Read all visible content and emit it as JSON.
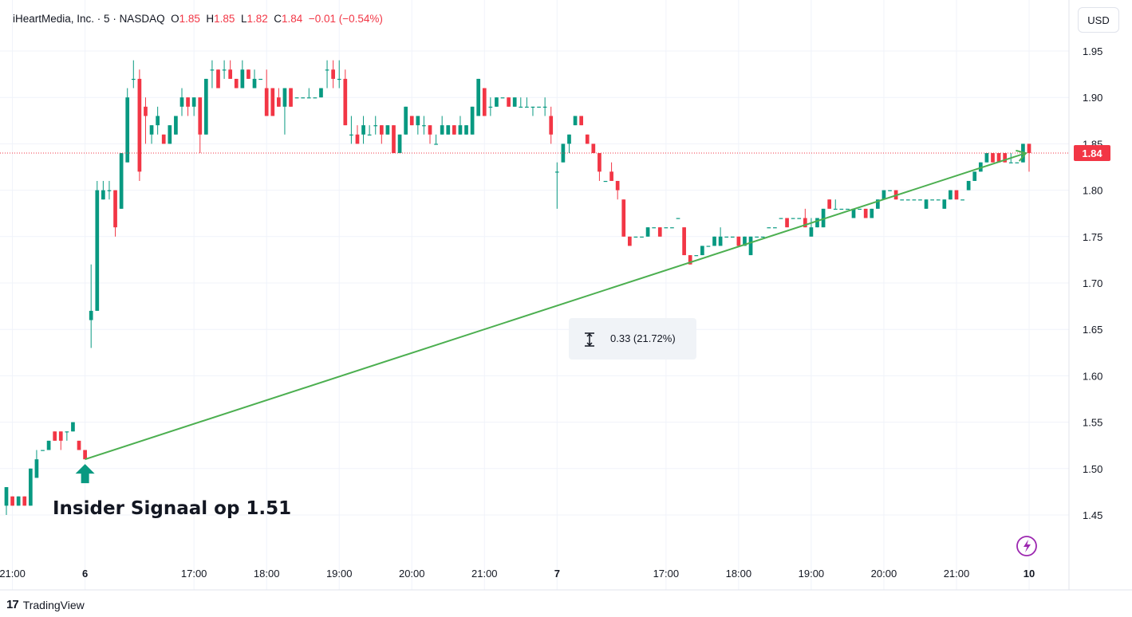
{
  "header": {
    "symbol_name": "iHeartMedia, Inc.",
    "sep1": " · ",
    "interval": "5",
    "sep2": " · ",
    "exchange": "NASDAQ",
    "o_label": "O",
    "o_value": "1.85",
    "h_label": "H",
    "h_value": "1.85",
    "l_label": "L",
    "l_value": "1.82",
    "c_label": "C",
    "c_value": "1.84",
    "change": "−0.01 (−0.54%)"
  },
  "currency_button": "USD",
  "footer": {
    "brand": "TradingView",
    "logo": "17"
  },
  "colors": {
    "up": "#089981",
    "down": "#f23645",
    "trendline": "#4caf50",
    "price_line": "#f23645",
    "grid": "#f0f3fa",
    "accent": "#9c27b0"
  },
  "chart_data": {
    "type": "candlestick",
    "ylim": [
      1.41,
      1.98
    ],
    "y_ticks": [
      1.45,
      1.5,
      1.55,
      1.6,
      1.65,
      1.7,
      1.75,
      1.8,
      1.85,
      1.9,
      1.95
    ],
    "y_tick_labels": [
      "1.45",
      "1.50",
      "1.55",
      "1.60",
      "1.65",
      "1.70",
      "1.75",
      "1.80",
      "1.85",
      "1.90",
      "1.95"
    ],
    "x_ticks": [
      {
        "label": "21:00",
        "i": 1,
        "bold": false
      },
      {
        "label": "6",
        "i": 13,
        "bold": true
      },
      {
        "label": "17:00",
        "i": 31,
        "bold": false
      },
      {
        "label": "18:00",
        "i": 43,
        "bold": false
      },
      {
        "label": "19:00",
        "i": 55,
        "bold": false
      },
      {
        "label": "20:00",
        "i": 67,
        "bold": false
      },
      {
        "label": "21:00",
        "i": 79,
        "bold": false
      },
      {
        "label": "7",
        "i": 91,
        "bold": true
      },
      {
        "label": "17:00",
        "i": 109,
        "bold": false
      },
      {
        "label": "18:00",
        "i": 121,
        "bold": false
      },
      {
        "label": "19:00",
        "i": 133,
        "bold": false
      },
      {
        "label": "20:00",
        "i": 145,
        "bold": false
      },
      {
        "label": "21:00",
        "i": 157,
        "bold": false
      },
      {
        "label": "10",
        "i": 169,
        "bold": true
      }
    ],
    "last_price": "1.84",
    "last_price_value": 1.84,
    "ohlc": [
      [
        1.46,
        1.48,
        1.45,
        1.48
      ],
      [
        1.47,
        1.47,
        1.46,
        1.46
      ],
      [
        1.46,
        1.47,
        1.46,
        1.47
      ],
      [
        1.47,
        1.47,
        1.46,
        1.46
      ],
      [
        1.46,
        1.5,
        1.46,
        1.5
      ],
      [
        1.49,
        1.52,
        1.49,
        1.51
      ],
      [
        1.52,
        1.52,
        1.52,
        1.52
      ],
      [
        1.52,
        1.53,
        1.52,
        1.53
      ],
      [
        1.54,
        1.54,
        1.53,
        1.53
      ],
      [
        1.54,
        1.54,
        1.52,
        1.53
      ],
      [
        1.54,
        1.54,
        1.53,
        1.54
      ],
      [
        1.54,
        1.55,
        1.54,
        1.55
      ],
      [
        1.53,
        1.53,
        1.52,
        1.52
      ],
      [
        1.52,
        1.52,
        1.51,
        1.51
      ],
      [
        1.66,
        1.72,
        1.63,
        1.67
      ],
      [
        1.67,
        1.81,
        1.67,
        1.8
      ],
      [
        1.79,
        1.81,
        1.79,
        1.8
      ],
      [
        1.8,
        1.81,
        1.79,
        1.8
      ],
      [
        1.8,
        1.8,
        1.75,
        1.76
      ],
      [
        1.78,
        1.84,
        1.78,
        1.84
      ],
      [
        1.83,
        1.91,
        1.83,
        1.9
      ],
      [
        1.92,
        1.94,
        1.91,
        1.92
      ],
      [
        1.92,
        1.93,
        1.81,
        1.82
      ],
      [
        1.89,
        1.9,
        1.85,
        1.88
      ],
      [
        1.86,
        1.87,
        1.85,
        1.87
      ],
      [
        1.87,
        1.89,
        1.86,
        1.88
      ],
      [
        1.86,
        1.86,
        1.85,
        1.85
      ],
      [
        1.85,
        1.87,
        1.85,
        1.87
      ],
      [
        1.86,
        1.88,
        1.86,
        1.88
      ],
      [
        1.89,
        1.91,
        1.88,
        1.9
      ],
      [
        1.9,
        1.9,
        1.88,
        1.89
      ],
      [
        1.89,
        1.9,
        1.88,
        1.9
      ],
      [
        1.9,
        1.9,
        1.84,
        1.86
      ],
      [
        1.86,
        1.92,
        1.86,
        1.92
      ],
      [
        1.93,
        1.94,
        1.91,
        1.93
      ],
      [
        1.93,
        1.93,
        1.91,
        1.91
      ],
      [
        1.93,
        1.94,
        1.92,
        1.93
      ],
      [
        1.93,
        1.94,
        1.92,
        1.92
      ],
      [
        1.92,
        1.92,
        1.91,
        1.91
      ],
      [
        1.91,
        1.94,
        1.91,
        1.93
      ],
      [
        1.93,
        1.93,
        1.92,
        1.92
      ],
      [
        1.91,
        1.93,
        1.91,
        1.92
      ],
      [
        1.92,
        1.92,
        1.92,
        1.92
      ],
      [
        1.91,
        1.93,
        1.88,
        1.88
      ],
      [
        1.91,
        1.91,
        1.88,
        1.88
      ],
      [
        1.9,
        1.91,
        1.89,
        1.89
      ],
      [
        1.89,
        1.91,
        1.86,
        1.91
      ],
      [
        1.91,
        1.91,
        1.89,
        1.89
      ],
      [
        1.9,
        1.9,
        1.9,
        1.9
      ],
      [
        1.9,
        1.9,
        1.9,
        1.9
      ],
      [
        1.9,
        1.91,
        1.9,
        1.9
      ],
      [
        1.9,
        1.9,
        1.9,
        1.9
      ],
      [
        1.9,
        1.91,
        1.9,
        1.91
      ],
      [
        1.93,
        1.94,
        1.91,
        1.93
      ],
      [
        1.93,
        1.94,
        1.91,
        1.92
      ],
      [
        1.92,
        1.94,
        1.91,
        1.92
      ],
      [
        1.92,
        1.93,
        1.87,
        1.87
      ],
      [
        1.86,
        1.88,
        1.85,
        1.86
      ],
      [
        1.86,
        1.87,
        1.85,
        1.85
      ],
      [
        1.86,
        1.88,
        1.85,
        1.87
      ],
      [
        1.86,
        1.87,
        1.86,
        1.86
      ],
      [
        1.87,
        1.88,
        1.86,
        1.87
      ],
      [
        1.87,
        1.87,
        1.85,
        1.86
      ],
      [
        1.86,
        1.87,
        1.86,
        1.87
      ],
      [
        1.87,
        1.87,
        1.84,
        1.84
      ],
      [
        1.84,
        1.86,
        1.84,
        1.86
      ],
      [
        1.86,
        1.89,
        1.86,
        1.89
      ],
      [
        1.88,
        1.88,
        1.87,
        1.87
      ],
      [
        1.87,
        1.88,
        1.86,
        1.88
      ],
      [
        1.87,
        1.88,
        1.86,
        1.87
      ],
      [
        1.87,
        1.87,
        1.85,
        1.86
      ],
      [
        1.85,
        1.86,
        1.85,
        1.85
      ],
      [
        1.86,
        1.88,
        1.86,
        1.87
      ],
      [
        1.86,
        1.87,
        1.86,
        1.87
      ],
      [
        1.87,
        1.87,
        1.86,
        1.86
      ],
      [
        1.86,
        1.88,
        1.86,
        1.87
      ],
      [
        1.86,
        1.87,
        1.86,
        1.87
      ],
      [
        1.86,
        1.89,
        1.86,
        1.89
      ],
      [
        1.88,
        1.92,
        1.88,
        1.92
      ],
      [
        1.91,
        1.91,
        1.88,
        1.88
      ],
      [
        1.89,
        1.9,
        1.88,
        1.89
      ],
      [
        1.89,
        1.9,
        1.89,
        1.9
      ],
      [
        1.9,
        1.9,
        1.9,
        1.9
      ],
      [
        1.9,
        1.9,
        1.89,
        1.89
      ],
      [
        1.89,
        1.9,
        1.89,
        1.9
      ],
      [
        1.89,
        1.9,
        1.89,
        1.89
      ],
      [
        1.89,
        1.9,
        1.89,
        1.89
      ],
      [
        1.89,
        1.89,
        1.88,
        1.89
      ],
      [
        1.89,
        1.89,
        1.89,
        1.89
      ],
      [
        1.89,
        1.9,
        1.88,
        1.89
      ],
      [
        1.88,
        1.89,
        1.85,
        1.86
      ],
      [
        1.82,
        1.83,
        1.78,
        1.82
      ],
      [
        1.83,
        1.85,
        1.83,
        1.85
      ],
      [
        1.85,
        1.86,
        1.84,
        1.86
      ],
      [
        1.87,
        1.88,
        1.87,
        1.88
      ],
      [
        1.88,
        1.88,
        1.87,
        1.87
      ],
      [
        1.86,
        1.86,
        1.85,
        1.85
      ],
      [
        1.85,
        1.85,
        1.84,
        1.84
      ],
      [
        1.84,
        1.84,
        1.81,
        1.82
      ],
      [
        1.81,
        1.81,
        1.81,
        1.81
      ],
      [
        1.82,
        1.83,
        1.81,
        1.81
      ],
      [
        1.81,
        1.81,
        1.79,
        1.8
      ],
      [
        1.79,
        1.79,
        1.75,
        1.75
      ],
      [
        1.75,
        1.75,
        1.74,
        1.74
      ],
      [
        1.75,
        1.75,
        1.75,
        1.75
      ],
      [
        1.75,
        1.75,
        1.75,
        1.75
      ],
      [
        1.75,
        1.76,
        1.75,
        1.76
      ],
      [
        1.76,
        1.76,
        1.76,
        1.76
      ],
      [
        1.76,
        1.76,
        1.75,
        1.75
      ],
      [
        1.76,
        1.76,
        1.76,
        1.76
      ],
      [
        1.76,
        1.76,
        1.76,
        1.76
      ],
      [
        1.77,
        1.77,
        1.77,
        1.77
      ],
      [
        1.76,
        1.76,
        1.73,
        1.73
      ],
      [
        1.73,
        1.73,
        1.72,
        1.72
      ],
      [
        1.73,
        1.73,
        1.73,
        1.73
      ],
      [
        1.73,
        1.74,
        1.73,
        1.74
      ],
      [
        1.74,
        1.74,
        1.74,
        1.74
      ],
      [
        1.74,
        1.75,
        1.74,
        1.75
      ],
      [
        1.74,
        1.76,
        1.74,
        1.75
      ],
      [
        1.75,
        1.75,
        1.75,
        1.75
      ],
      [
        1.75,
        1.75,
        1.75,
        1.75
      ],
      [
        1.75,
        1.75,
        1.74,
        1.74
      ],
      [
        1.74,
        1.75,
        1.74,
        1.75
      ],
      [
        1.73,
        1.75,
        1.73,
        1.75
      ],
      [
        1.75,
        1.75,
        1.75,
        1.75
      ],
      [
        1.75,
        1.75,
        1.75,
        1.75
      ],
      [
        1.76,
        1.76,
        1.76,
        1.76
      ],
      [
        1.76,
        1.76,
        1.76,
        1.76
      ],
      [
        1.77,
        1.77,
        1.77,
        1.77
      ],
      [
        1.77,
        1.77,
        1.76,
        1.76
      ],
      [
        1.77,
        1.77,
        1.77,
        1.77
      ],
      [
        1.77,
        1.77,
        1.77,
        1.77
      ],
      [
        1.77,
        1.78,
        1.76,
        1.76
      ],
      [
        1.75,
        1.77,
        1.75,
        1.76
      ],
      [
        1.76,
        1.77,
        1.76,
        1.77
      ],
      [
        1.76,
        1.78,
        1.76,
        1.78
      ],
      [
        1.79,
        1.79,
        1.78,
        1.78
      ],
      [
        1.78,
        1.79,
        1.78,
        1.78
      ],
      [
        1.78,
        1.78,
        1.78,
        1.78
      ],
      [
        1.78,
        1.78,
        1.78,
        1.78
      ],
      [
        1.77,
        1.78,
        1.77,
        1.78
      ],
      [
        1.78,
        1.78,
        1.78,
        1.78
      ],
      [
        1.78,
        1.78,
        1.77,
        1.77
      ],
      [
        1.77,
        1.78,
        1.77,
        1.78
      ],
      [
        1.78,
        1.79,
        1.78,
        1.79
      ],
      [
        1.79,
        1.8,
        1.79,
        1.8
      ],
      [
        1.8,
        1.8,
        1.8,
        1.8
      ],
      [
        1.8,
        1.8,
        1.79,
        1.79
      ],
      [
        1.79,
        1.79,
        1.79,
        1.79
      ],
      [
        1.79,
        1.79,
        1.79,
        1.79
      ],
      [
        1.79,
        1.79,
        1.79,
        1.79
      ],
      [
        1.79,
        1.79,
        1.79,
        1.79
      ],
      [
        1.78,
        1.79,
        1.78,
        1.79
      ],
      [
        1.79,
        1.79,
        1.79,
        1.79
      ],
      [
        1.79,
        1.79,
        1.79,
        1.79
      ],
      [
        1.78,
        1.79,
        1.78,
        1.79
      ],
      [
        1.79,
        1.8,
        1.79,
        1.8
      ],
      [
        1.8,
        1.8,
        1.79,
        1.79
      ],
      [
        1.79,
        1.79,
        1.79,
        1.79
      ],
      [
        1.8,
        1.81,
        1.8,
        1.81
      ],
      [
        1.81,
        1.82,
        1.81,
        1.82
      ],
      [
        1.82,
        1.83,
        1.82,
        1.83
      ],
      [
        1.83,
        1.84,
        1.83,
        1.84
      ],
      [
        1.84,
        1.84,
        1.83,
        1.83
      ],
      [
        1.84,
        1.84,
        1.83,
        1.83
      ],
      [
        1.84,
        1.84,
        1.83,
        1.83
      ],
      [
        1.83,
        1.84,
        1.83,
        1.83
      ],
      [
        1.83,
        1.83,
        1.83,
        1.83
      ],
      [
        1.83,
        1.85,
        1.83,
        1.85
      ],
      [
        1.85,
        1.85,
        1.82,
        1.84
      ]
    ],
    "trendline": {
      "from": {
        "i": 13,
        "price": 1.51
      },
      "to": {
        "i": 169,
        "price": 1.84
      }
    },
    "measure_label": "0.33 (21.72%)",
    "annotation": "Insider Signaal op 1.51",
    "signal_marker": {
      "i": 13,
      "price": 1.51,
      "icon": "up-arrow-icon"
    },
    "replay_icon": "lightning-icon"
  }
}
